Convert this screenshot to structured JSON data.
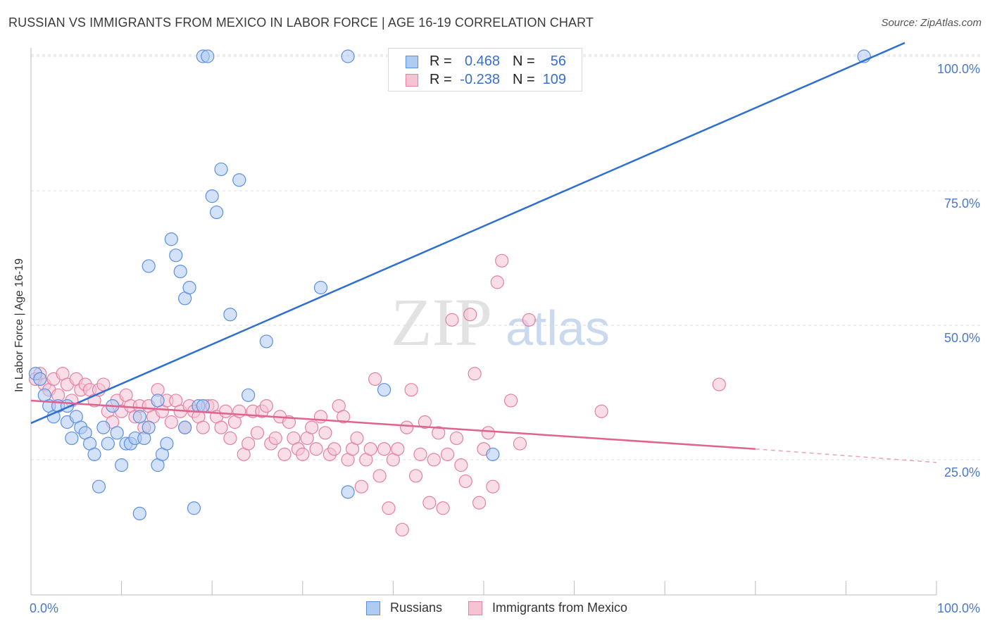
{
  "title": "RUSSIAN VS IMMIGRANTS FROM MEXICO IN LABOR FORCE | AGE 16-19 CORRELATION CHART",
  "source": "Source: ZipAtlas.com",
  "watermark": {
    "zip": "ZIP",
    "atlas": "atlas"
  },
  "colors": {
    "blue": "#5b8fe0",
    "blue_line": "#2f6fd0",
    "blue_fill": "#aecbf2",
    "pink": "#e57fa3",
    "pink_line": "#e0638f",
    "pink_fill": "#f6c3d3",
    "axis_text": "#4a78c8",
    "grid": "#dcdcdc"
  },
  "legend": {
    "rows": [
      {
        "r_label": "R =",
        "r_value": "0.468",
        "n_label": "N =",
        "n_value": "56",
        "color": "blue"
      },
      {
        "r_label": "R =",
        "r_value": "-0.238",
        "n_label": "N =",
        "n_value": "109",
        "color": "pink"
      }
    ]
  },
  "bottom_legend": {
    "series1": "Russians",
    "series2": "Immigrants from Mexico"
  },
  "chart_data": {
    "type": "scatter",
    "title": "RUSSIAN VS IMMIGRANTS FROM MEXICO IN LABOR FORCE | AGE 16-19 CORRELATION CHART",
    "ylabel": "In Labor Force | Age 16-19",
    "xlabel": "",
    "xlim": [
      0,
      100
    ],
    "ylim": [
      0,
      105
    ],
    "x_tick_labels": [
      "0.0%",
      "100.0%"
    ],
    "y_tick_labels": [
      "25.0%",
      "50.0%",
      "75.0%",
      "100.0%"
    ],
    "y_ticks": [
      25,
      50,
      75,
      100
    ],
    "grid": "horizontal dashed",
    "series": [
      {
        "name": "Russians",
        "color": "blue",
        "trend": {
          "x": [
            0,
            96.5
          ],
          "y": [
            31.8,
            102.5
          ]
        },
        "points": [
          [
            0.5,
            41
          ],
          [
            1,
            40
          ],
          [
            1.5,
            37
          ],
          [
            2,
            35
          ],
          [
            2.5,
            33
          ],
          [
            3,
            35
          ],
          [
            4,
            35
          ],
          [
            4,
            32
          ],
          [
            4.5,
            29
          ],
          [
            5,
            33
          ],
          [
            5.5,
            31
          ],
          [
            6,
            30
          ],
          [
            6.5,
            28
          ],
          [
            7,
            26
          ],
          [
            7.5,
            20
          ],
          [
            8,
            31
          ],
          [
            8.5,
            28
          ],
          [
            9,
            35
          ],
          [
            9.5,
            30
          ],
          [
            10,
            24
          ],
          [
            10.5,
            28
          ],
          [
            11,
            28
          ],
          [
            11.5,
            29
          ],
          [
            12,
            33
          ],
          [
            12.5,
            29
          ],
          [
            12,
            15
          ],
          [
            13,
            31
          ],
          [
            14,
            24
          ],
          [
            14.5,
            26
          ],
          [
            15,
            28
          ],
          [
            15.5,
            66
          ],
          [
            16,
            63
          ],
          [
            16.5,
            60
          ],
          [
            17,
            55
          ],
          [
            17.5,
            57
          ],
          [
            17,
            31
          ],
          [
            18,
            16
          ],
          [
            18.5,
            35
          ],
          [
            19,
            100
          ],
          [
            19.5,
            100
          ],
          [
            20,
            74
          ],
          [
            20.5,
            71
          ],
          [
            21,
            79
          ],
          [
            22,
            52
          ],
          [
            23,
            77
          ],
          [
            24,
            37
          ],
          [
            26,
            47
          ],
          [
            32,
            57
          ],
          [
            35,
            19
          ],
          [
            35,
            100
          ],
          [
            39,
            38
          ],
          [
            51,
            26
          ],
          [
            92,
            100
          ],
          [
            13,
            61
          ],
          [
            14,
            36
          ],
          [
            19,
            35
          ]
        ]
      },
      {
        "name": "Immigrants from Mexico",
        "color": "pink",
        "trend": {
          "x": [
            0,
            80
          ],
          "y": [
            36,
            27
          ]
        },
        "trend_ext": {
          "x": [
            80,
            100
          ],
          "y": [
            27,
            24.5
          ]
        },
        "points": [
          [
            0.5,
            40
          ],
          [
            1,
            41
          ],
          [
            1.5,
            39
          ],
          [
            2,
            38
          ],
          [
            2.5,
            40
          ],
          [
            3,
            37
          ],
          [
            3.5,
            41
          ],
          [
            4,
            39
          ],
          [
            4.5,
            36
          ],
          [
            5,
            40
          ],
          [
            5.5,
            38
          ],
          [
            6,
            39
          ],
          [
            6.5,
            38
          ],
          [
            7,
            36
          ],
          [
            7.5,
            38
          ],
          [
            8,
            39
          ],
          [
            8.5,
            34
          ],
          [
            9,
            32
          ],
          [
            9.5,
            36
          ],
          [
            10,
            34
          ],
          [
            10.5,
            37
          ],
          [
            11,
            35
          ],
          [
            11.5,
            33
          ],
          [
            12,
            35
          ],
          [
            12.5,
            31
          ],
          [
            13,
            35
          ],
          [
            13.5,
            33
          ],
          [
            14,
            38
          ],
          [
            14.5,
            34
          ],
          [
            15,
            36
          ],
          [
            15.5,
            32
          ],
          [
            16,
            36
          ],
          [
            16.5,
            34
          ],
          [
            17,
            31
          ],
          [
            17.5,
            35
          ],
          [
            18,
            34
          ],
          [
            18.5,
            33
          ],
          [
            19,
            31
          ],
          [
            19.5,
            35
          ],
          [
            20,
            35
          ],
          [
            20.5,
            33
          ],
          [
            21,
            31
          ],
          [
            21.5,
            34
          ],
          [
            22,
            29
          ],
          [
            22.5,
            32
          ],
          [
            23,
            34
          ],
          [
            23.5,
            26
          ],
          [
            24,
            28
          ],
          [
            24.5,
            34
          ],
          [
            25,
            30
          ],
          [
            25.5,
            34
          ],
          [
            26,
            35
          ],
          [
            26.5,
            28
          ],
          [
            27,
            29
          ],
          [
            27.5,
            33
          ],
          [
            28,
            26
          ],
          [
            28.5,
            32
          ],
          [
            29,
            29
          ],
          [
            29.5,
            27
          ],
          [
            30,
            26
          ],
          [
            30.5,
            29
          ],
          [
            31,
            31
          ],
          [
            31.5,
            27
          ],
          [
            32,
            33
          ],
          [
            32.5,
            30
          ],
          [
            33,
            26
          ],
          [
            33.5,
            27
          ],
          [
            34,
            35
          ],
          [
            34.5,
            33
          ],
          [
            35,
            25
          ],
          [
            35.5,
            27
          ],
          [
            36,
            29
          ],
          [
            36.5,
            20
          ],
          [
            37,
            25
          ],
          [
            37.5,
            27
          ],
          [
            38,
            40
          ],
          [
            38.5,
            22
          ],
          [
            39,
            27
          ],
          [
            39.5,
            16
          ],
          [
            40,
            25
          ],
          [
            40.5,
            27
          ],
          [
            41,
            12
          ],
          [
            41.5,
            31
          ],
          [
            42,
            38
          ],
          [
            42.5,
            22
          ],
          [
            43,
            26
          ],
          [
            43.5,
            32
          ],
          [
            44,
            17
          ],
          [
            44.5,
            25
          ],
          [
            45,
            30
          ],
          [
            45.5,
            16
          ],
          [
            46,
            26
          ],
          [
            46.5,
            51
          ],
          [
            47,
            29
          ],
          [
            47.5,
            24
          ],
          [
            48,
            21
          ],
          [
            48.5,
            52
          ],
          [
            49,
            41
          ],
          [
            49.5,
            17
          ],
          [
            50,
            27
          ],
          [
            50.5,
            30
          ],
          [
            51,
            20
          ],
          [
            51.5,
            58
          ],
          [
            52,
            62
          ],
          [
            53,
            36
          ],
          [
            54,
            28
          ],
          [
            55,
            51
          ],
          [
            76,
            39
          ],
          [
            63,
            34
          ]
        ]
      }
    ]
  }
}
